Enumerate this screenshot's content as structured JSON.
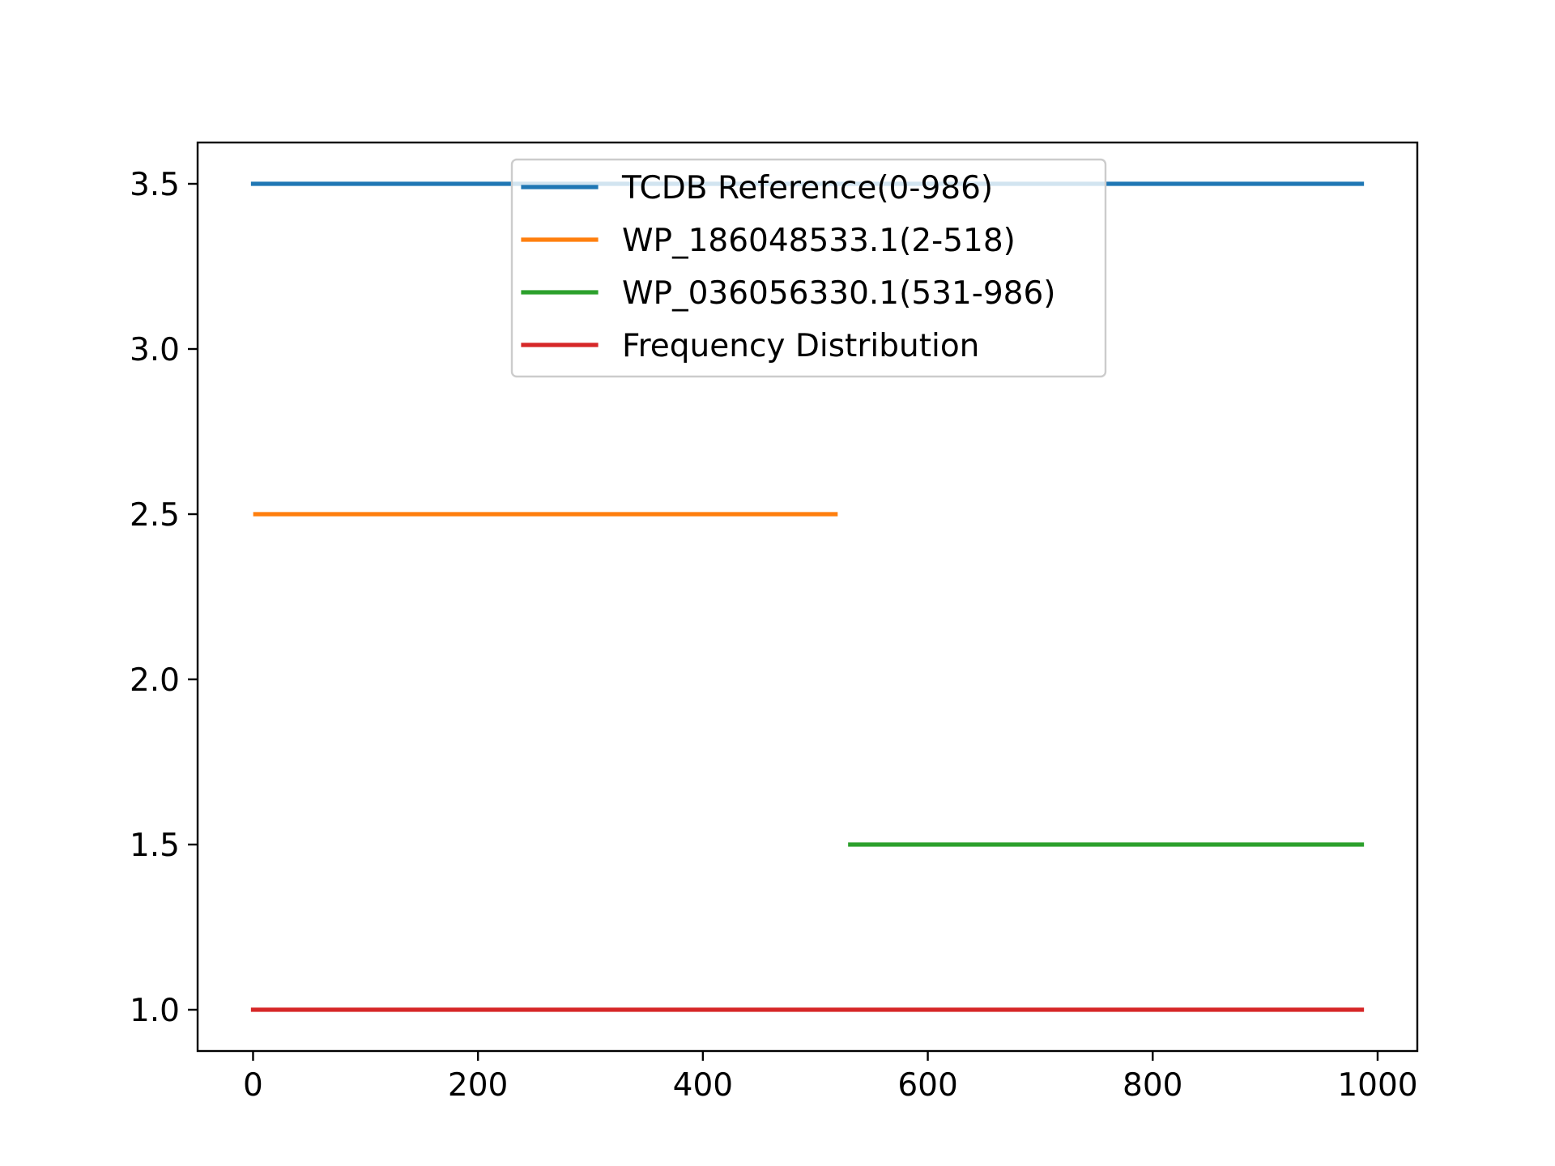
{
  "chart_data": {
    "type": "line",
    "title": "",
    "xlabel": "",
    "ylabel": "",
    "xlim": [
      -49.3,
      1035.3
    ],
    "ylim": [
      0.875,
      3.625
    ],
    "xticks": [
      "0",
      "200",
      "400",
      "600",
      "800",
      "1000"
    ],
    "yticks": [
      "1.0",
      "1.5",
      "2.0",
      "2.5",
      "3.0",
      "3.5"
    ],
    "grid": false,
    "legend_position": "upper center",
    "series": [
      {
        "name": "TCDB Reference(0-986)",
        "color": "#1f77b4",
        "x": [
          0,
          986
        ],
        "y": [
          3.5,
          3.5
        ]
      },
      {
        "name": "WP_186048533.1(2-518)",
        "color": "#ff7f0e",
        "x": [
          2,
          518
        ],
        "y": [
          2.5,
          2.5
        ]
      },
      {
        "name": "WP_036056330.1(531-986)",
        "color": "#2ca02c",
        "x": [
          531,
          986
        ],
        "y": [
          1.5,
          1.5
        ]
      },
      {
        "name": "Frequency Distribution",
        "color": "#d62728",
        "x": [
          0,
          986
        ],
        "y": [
          1.0,
          1.0
        ]
      }
    ]
  }
}
